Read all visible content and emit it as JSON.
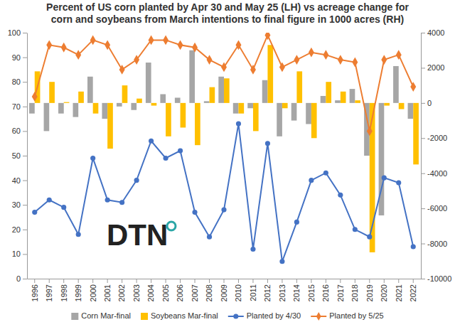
{
  "chart_data": {
    "type": "bar",
    "title": [
      "Percent of US corn planted by Apr 30 and May 25 (LH) vs acreage change for",
      "corn and soybeans from March intentions to final figure in 1000 acres (RH)"
    ],
    "watermark": "DTN",
    "categories": [
      "1996",
      "1997",
      "1998",
      "1999",
      "2000",
      "2001",
      "2002",
      "2003",
      "2004",
      "2005",
      "2006",
      "2007",
      "2008",
      "2009",
      "2010",
      "2011",
      "2012",
      "2013",
      "2014",
      "2015",
      "2016",
      "2017",
      "2018",
      "2019",
      "2020",
      "2021",
      "2022"
    ],
    "series": [
      {
        "name": "Corn Mar-final",
        "type": "bar",
        "axis": "y2",
        "color": "#a6a6a6",
        "values": [
          -600,
          -1600,
          -600,
          -800,
          1500,
          -900,
          -200,
          -400,
          2300,
          500,
          300,
          3000,
          100,
          1500,
          -600,
          -300,
          1300,
          -1900,
          -1000,
          -1200,
          400,
          150,
          800,
          -3000,
          -6400,
          2100,
          -900
        ]
      },
      {
        "name": "Soybeans Mar-final",
        "type": "bar",
        "axis": "y2",
        "color": "#ffc000",
        "values": [
          1800,
          1200,
          50,
          650,
          -600,
          -2600,
          1000,
          250,
          -150,
          -1900,
          -1400,
          -2400,
          900,
          1400,
          -600,
          -1600,
          3300,
          -300,
          1800,
          -2000,
          1200,
          650,
          150,
          -8500,
          -150,
          -350,
          -3500
        ]
      },
      {
        "name": "Planted by 4/30",
        "type": "line",
        "marker": "circle",
        "color": "#4472c4",
        "values": [
          27,
          32,
          29,
          18,
          49,
          32,
          31,
          40,
          56,
          49,
          52,
          27,
          17,
          28,
          63,
          12,
          55,
          7,
          23,
          40,
          43,
          34,
          20,
          17,
          41,
          39,
          13
        ]
      },
      {
        "name": "Planted by 5/25",
        "type": "line",
        "marker": "diamond",
        "color": "#ed7d31",
        "values": [
          74,
          95,
          94,
          91,
          97,
          95,
          85,
          89,
          97,
          97,
          95,
          94,
          89,
          86,
          95,
          85,
          99,
          86,
          89,
          92,
          91,
          89,
          88,
          60,
          89,
          91,
          78
        ]
      }
    ],
    "ylim": [
      0,
      100
    ],
    "yticks": [
      0,
      10,
      20,
      30,
      40,
      50,
      60,
      70,
      80,
      90,
      100
    ],
    "y2lim": [
      -10000,
      4000
    ],
    "y2ticks": [
      -10000,
      -8000,
      -6000,
      -4000,
      -2000,
      0,
      2000,
      4000
    ],
    "grid": false,
    "legend": "bottom"
  }
}
